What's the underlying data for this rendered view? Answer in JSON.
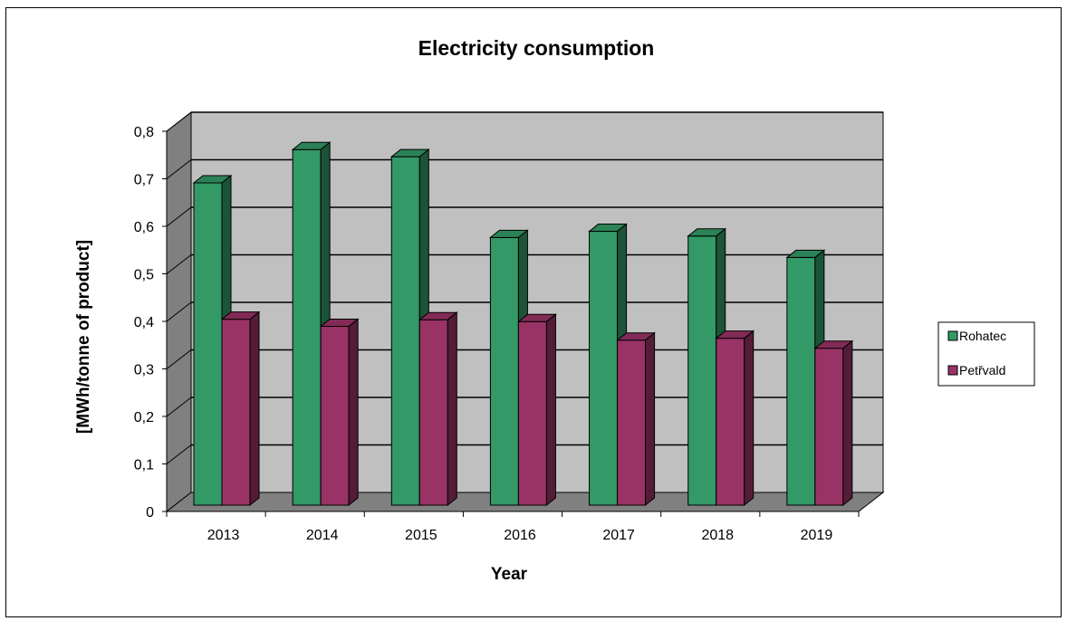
{
  "chart_data": {
    "type": "bar",
    "title": "Electricity consumption",
    "xlabel": "Year",
    "ylabel": "[MWh/tonne of product]",
    "categories": [
      "2013",
      "2014",
      "2015",
      "2016",
      "2017",
      "2018",
      "2019"
    ],
    "series": [
      {
        "name": "Rohatec",
        "color": "#339966",
        "values": [
          0.68,
          0.75,
          0.735,
          0.565,
          0.578,
          0.568,
          0.523
        ]
      },
      {
        "name": "Petřvald",
        "color": "#993366",
        "values": [
          0.393,
          0.378,
          0.392,
          0.388,
          0.349,
          0.353,
          0.332
        ]
      }
    ],
    "ylim": [
      0,
      0.8
    ],
    "yticks": [
      "0",
      "0,1",
      "0,2",
      "0,3",
      "0,4",
      "0,5",
      "0,6",
      "0,7",
      "0,8"
    ],
    "grid": true,
    "legend": "right",
    "style": "3d-clustered-bar",
    "wall_color": "#c0c0c0",
    "floor_color": "#808080"
  }
}
